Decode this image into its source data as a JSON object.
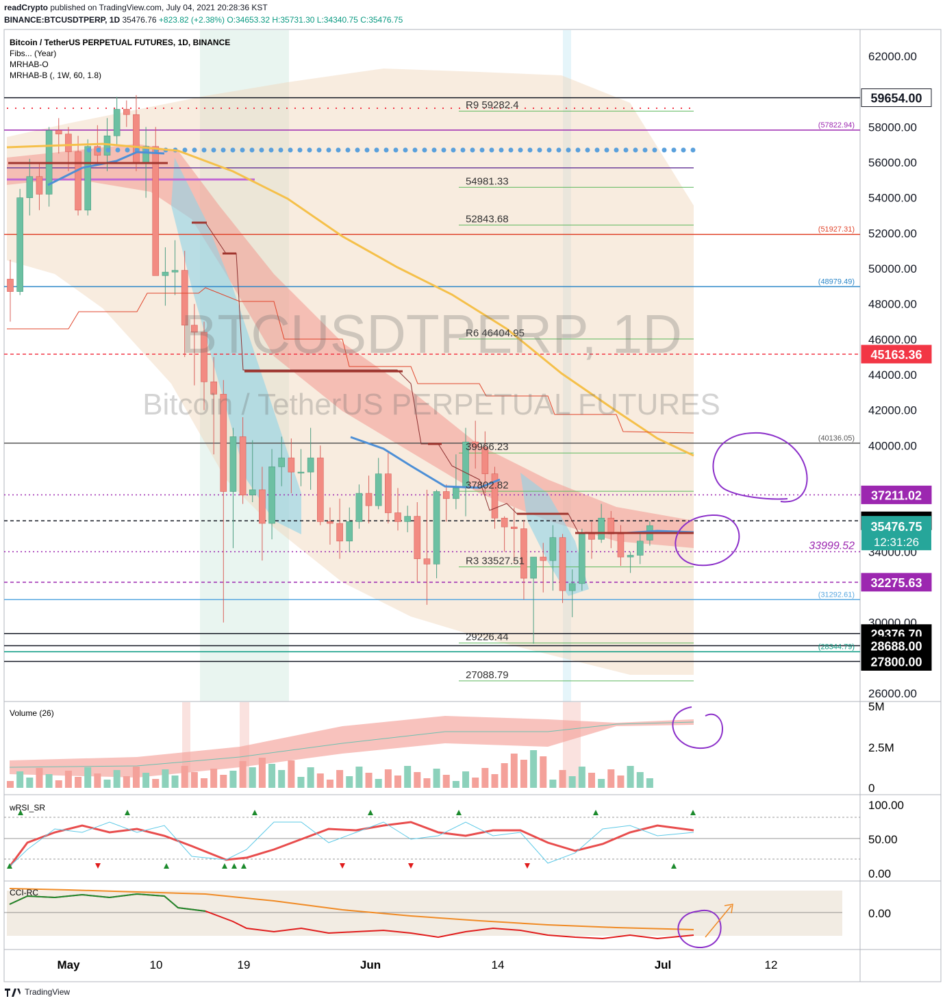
{
  "header": {
    "user": "readCrypto",
    "published": "published on TradingView.com, July 04, 2021 20:28:36 KST",
    "symbol": "BINANCE:BTCUSDTPERP, 1D",
    "ohlc_prefix": "35476.76",
    "change": "+823.82 (+2.38%)",
    "o": "O:34653.32",
    "h": "H:35731.30",
    "l": "L:34340.75",
    "c": "C:35476.75"
  },
  "legend": {
    "title": "Bitcoin / TetherUS PERPETUAL FUTURES, 1D, BINANCE",
    "ind1": "Fibs... (Year)",
    "ind2": "MRHAB-O",
    "ind3": "MRHAB-B (, 1W, 60, 1.8)"
  },
  "watermark": {
    "line1": "BTCUSDTPERP, 1D",
    "line2": "Bitcoin / TetherUS PERPETUAL FUTURES"
  },
  "price_axis": [
    "62000.00",
    "58000.00",
    "56000.00",
    "54000.00",
    "52000.00",
    "50000.00",
    "48000.00",
    "46000.00",
    "44000.00",
    "42000.00",
    "40000.00",
    "34000.00",
    "30000.00",
    "26000.00"
  ],
  "price_labels": [
    {
      "text": "59654.00",
      "price": 59654,
      "bg": "#ffffff",
      "fg": "#131722",
      "border": "#131722"
    },
    {
      "text": "45163.36",
      "price": 45163.36,
      "bg": "#f23645",
      "fg": "#ffffff",
      "border": "#f23645"
    },
    {
      "text": "37211.02",
      "price": 37211.02,
      "bg": "#9c27b0",
      "fg": "#ffffff",
      "border": "#9c27b0"
    },
    {
      "text": "35746.28",
      "price": 35746.28,
      "bg": "#000000",
      "fg": "#ffffff",
      "border": "#000000"
    },
    {
      "text": "32275.63",
      "price": 32275.63,
      "bg": "#9c27b0",
      "fg": "#ffffff",
      "border": "#9c27b0"
    },
    {
      "text": "29376.70",
      "price": 29376.7,
      "bg": "#000000",
      "fg": "#ffffff",
      "border": "#000000"
    },
    {
      "text": "28688.00",
      "price": 28688.0,
      "bg": "#000000",
      "fg": "#ffffff",
      "border": "#000000"
    },
    {
      "text": "27800.00",
      "price": 27800.0,
      "bg": "#000000",
      "fg": "#ffffff",
      "border": "#000000"
    }
  ],
  "last_price": {
    "text": "35476.75",
    "countdown": "12:31:26",
    "price": 35476.75
  },
  "hlines": [
    {
      "price": 59654,
      "color": "#131722",
      "style": "solid",
      "tag": ""
    },
    {
      "price": 57822.94,
      "color": "#9c27b0",
      "style": "solid",
      "tag": "(57822.94)"
    },
    {
      "price": 51927.31,
      "color": "#e0442b",
      "style": "solid",
      "tag": "(51927.31)"
    },
    {
      "price": 48979.49,
      "color": "#2a86c8",
      "style": "solid",
      "tag": "(48979.49)"
    },
    {
      "price": 45163.36,
      "color": "#f23645",
      "style": "dashed",
      "tag": ""
    },
    {
      "price": 40136.05,
      "color": "#555555",
      "style": "solid",
      "tag": "(40136.05)"
    },
    {
      "price": 37211.02,
      "color": "#9c27b0",
      "style": "dotted",
      "tag": ""
    },
    {
      "price": 35746.28,
      "color": "#131722",
      "style": "dashed",
      "tag": ""
    },
    {
      "price": 33999.52,
      "color": "#9c27b0",
      "style": "dotted",
      "tag": "33999.52"
    },
    {
      "price": 32275.63,
      "color": "#9c27b0",
      "style": "dashed",
      "tag": ""
    },
    {
      "price": 31292.61,
      "color": "#5aa8e0",
      "style": "solid",
      "tag": "(31292.61)"
    },
    {
      "price": 29376.7,
      "color": "#131722",
      "style": "solid",
      "tag": ""
    },
    {
      "price": 28688.0,
      "color": "#131722",
      "style": "solid",
      "tag": ""
    },
    {
      "price": 28344.79,
      "color": "#089981",
      "style": "solid",
      "tag": "(28344.79)"
    },
    {
      "price": 27800.0,
      "color": "#131722",
      "style": "solid",
      "tag": ""
    }
  ],
  "fib_levels": [
    {
      "text": "R9 59282.4",
      "price": 59282.4
    },
    {
      "text": "54981.33",
      "price": 54981.33
    },
    {
      "text": "52843.68",
      "price": 52843.68
    },
    {
      "text": "R6 46404.95",
      "price": 46404.95
    },
    {
      "text": "39966.23",
      "price": 39966.23
    },
    {
      "text": "37802.82",
      "price": 37802.82
    },
    {
      "text": "R3 33527.51",
      "price": 33527.51
    },
    {
      "text": "29226.44",
      "price": 29226.44
    },
    {
      "text": "27088.79",
      "price": 27088.79
    }
  ],
  "x_axis": [
    "May",
    "10",
    "19",
    "Jun",
    "14",
    "Jul",
    "12"
  ],
  "panes": {
    "volume": {
      "title": "Volume (26)",
      "axis": [
        "5M",
        "2.5M",
        "0"
      ]
    },
    "wrsi": {
      "title": "wRSI_SR",
      "axis": [
        "100.00",
        "50.00",
        "0.00"
      ]
    },
    "cci": {
      "title": "CCI-RC",
      "axis": [
        "0.00"
      ]
    }
  },
  "chart_data": {
    "type": "candlestick",
    "title": "Bitcoin / TetherUS PERPETUAL FUTURES, 1D, BINANCE",
    "ylim": [
      25500,
      63000
    ],
    "candles_ohlc_approx": [
      [
        49400,
        50500,
        47000,
        48700
      ],
      [
        48700,
        54500,
        48500,
        54000
      ],
      [
        54000,
        56200,
        53000,
        55200
      ],
      [
        55200,
        56000,
        53300,
        54200
      ],
      [
        54200,
        58000,
        53500,
        57800
      ],
      [
        57800,
        58500,
        56500,
        57600
      ],
      [
        57600,
        58000,
        55500,
        56600
      ],
      [
        56600,
        57500,
        53000,
        53300
      ],
      [
        53300,
        57300,
        53000,
        56900
      ],
      [
        56900,
        58100,
        56000,
        56400
      ],
      [
        56400,
        58500,
        55500,
        57500
      ],
      [
        57500,
        59700,
        57000,
        59000
      ],
      [
        59000,
        59500,
        58000,
        58700
      ],
      [
        58700,
        59800,
        55500,
        56000
      ],
      [
        56000,
        58000,
        54000,
        56900
      ],
      [
        56900,
        58000,
        49700,
        49600
      ],
      [
        49600,
        51200,
        47900,
        49800
      ],
      [
        49800,
        51600,
        48500,
        49900
      ],
      [
        49900,
        51000,
        45000,
        46800
      ],
      [
        46800,
        48000,
        43400,
        46400
      ],
      [
        46400,
        47000,
        42000,
        43600
      ],
      [
        43600,
        45000,
        39500,
        42900
      ],
      [
        42900,
        43700,
        30000,
        37400
      ],
      [
        37400,
        41000,
        34200,
        40500
      ],
      [
        40500,
        41600,
        36700,
        37200
      ],
      [
        37200,
        40300,
        36800,
        37500
      ],
      [
        37500,
        38800,
        33500,
        35600
      ],
      [
        35600,
        39800,
        34700,
        38800
      ],
      [
        38800,
        40500,
        37700,
        39300
      ],
      [
        39300,
        40400,
        37300,
        38500
      ],
      [
        38500,
        39800,
        37700,
        38500
      ],
      [
        38500,
        41000,
        37500,
        39300
      ],
      [
        39300,
        40000,
        35500,
        35700
      ],
      [
        35700,
        36500,
        34400,
        35600
      ],
      [
        35600,
        37000,
        33600,
        34600
      ],
      [
        34600,
        36500,
        34000,
        35700
      ],
      [
        35700,
        37800,
        35300,
        37300
      ],
      [
        37300,
        38300,
        35600,
        36600
      ],
      [
        36600,
        39300,
        36400,
        38400
      ],
      [
        38400,
        39600,
        35600,
        36200
      ],
      [
        36200,
        37600,
        35200,
        35700
      ],
      [
        35700,
        36600,
        35100,
        36000
      ],
      [
        36000,
        36800,
        32300,
        33600
      ],
      [
        33600,
        37500,
        31000,
        33300
      ],
      [
        33300,
        37500,
        32500,
        37400
      ],
      [
        37400,
        37800,
        35700,
        37000
      ],
      [
        37000,
        39500,
        36400,
        37600
      ],
      [
        37600,
        41000,
        36000,
        40200
      ],
      [
        40200,
        41400,
        38700,
        39900
      ],
      [
        39900,
        40800,
        37300,
        38400
      ],
      [
        38400,
        38800,
        35300,
        35900
      ],
      [
        35900,
        36000,
        34000,
        35400
      ],
      [
        35400,
        36500,
        33400,
        35300
      ],
      [
        35300,
        35800,
        31300,
        32500
      ],
      [
        32500,
        33300,
        28800,
        33700
      ],
      [
        33700,
        34500,
        31700,
        33500
      ],
      [
        33500,
        35500,
        31800,
        34800
      ],
      [
        34800,
        35000,
        31100,
        31800
      ],
      [
        31800,
        33000,
        30300,
        32200
      ],
      [
        32200,
        35300,
        31800,
        35000
      ],
      [
        35000,
        35700,
        33600,
        34700
      ],
      [
        34700,
        36700,
        34500,
        35900
      ],
      [
        35900,
        36300,
        34200,
        35000
      ],
      [
        35000,
        35500,
        33200,
        33700
      ],
      [
        33700,
        34000,
        32800,
        33800
      ],
      [
        33800,
        35000,
        33300,
        34600
      ],
      [
        34653,
        35731,
        34340,
        35476
      ]
    ]
  }
}
